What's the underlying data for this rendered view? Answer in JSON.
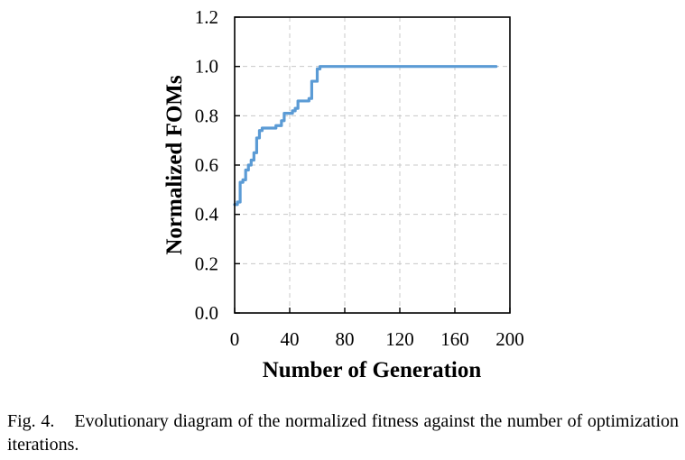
{
  "chart_data": {
    "type": "line",
    "xlabel": "Number of Generation",
    "ylabel": "Normalized FOMs",
    "xlim": [
      0,
      200
    ],
    "ylim": [
      0,
      1.2
    ],
    "xticks": [
      0,
      40,
      80,
      120,
      160,
      200
    ],
    "yticks": [
      0.0,
      0.2,
      0.4,
      0.6,
      0.8,
      1.0,
      1.2
    ],
    "xtick_labels": [
      "0",
      "40",
      "80",
      "120",
      "160",
      "200"
    ],
    "ytick_labels": [
      "0.0",
      "0.2",
      "0.4",
      "0.6",
      "0.8",
      "1.0",
      "1.2"
    ],
    "grid": true,
    "line_color": "#5b9bd5",
    "series": [
      {
        "x": [
          0,
          2,
          2,
          4,
          4,
          6,
          6,
          8,
          8,
          10,
          10,
          12,
          12,
          14,
          14,
          16,
          16,
          18,
          18,
          20,
          20,
          30,
          30,
          34,
          34,
          36,
          36,
          42,
          42,
          44,
          44,
          46,
          46,
          54,
          54,
          56,
          56,
          60,
          60,
          62,
          62,
          100,
          100,
          190
        ],
        "y": [
          0.44,
          0.44,
          0.45,
          0.45,
          0.53,
          0.53,
          0.54,
          0.54,
          0.58,
          0.58,
          0.6,
          0.6,
          0.62,
          0.62,
          0.65,
          0.65,
          0.71,
          0.71,
          0.74,
          0.74,
          0.75,
          0.75,
          0.76,
          0.76,
          0.78,
          0.78,
          0.81,
          0.81,
          0.82,
          0.82,
          0.83,
          0.83,
          0.86,
          0.86,
          0.87,
          0.87,
          0.94,
          0.94,
          0.99,
          0.99,
          1.0,
          1.0,
          1.0,
          1.0
        ]
      }
    ]
  },
  "caption": {
    "label": "Fig. 4.",
    "text": "Evolutionary diagram of the normalized fitness against the number of optimization iterations."
  }
}
